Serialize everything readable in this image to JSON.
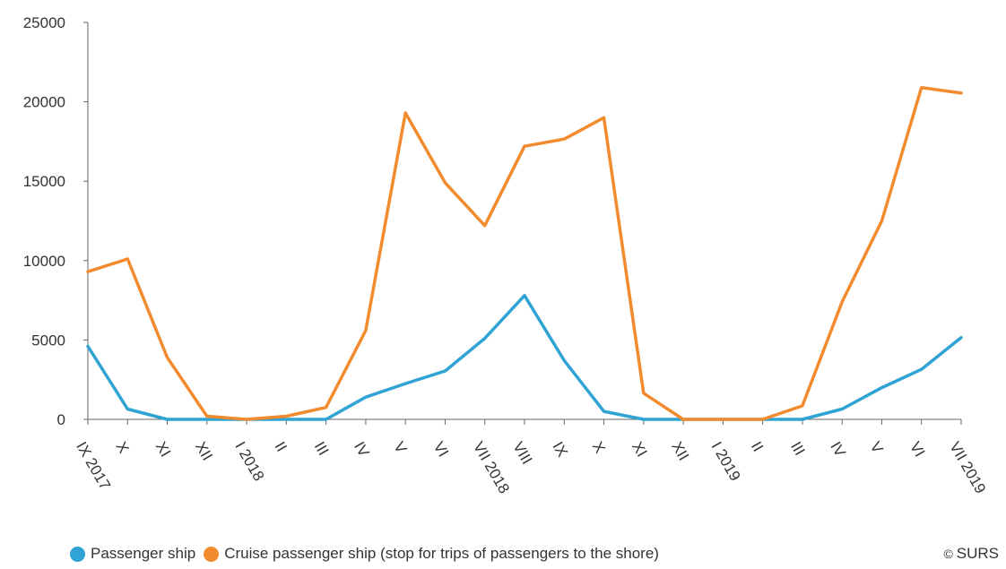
{
  "chart_data": {
    "type": "line",
    "categories": [
      "IX 2017",
      "X",
      "XI",
      "XII",
      "I 2018",
      "II",
      "III",
      "IV",
      "V",
      "VI",
      "VII 2018",
      "VIII",
      "IX",
      "X",
      "XI",
      "XII",
      "I 2019",
      "II",
      "III",
      "IV",
      "V",
      "VI",
      "VII 2019"
    ],
    "series": [
      {
        "name": "Passenger ship",
        "color": "#2ea3d4",
        "values": [
          4600,
          650,
          0,
          0,
          0,
          0,
          0,
          1400,
          2250,
          3050,
          5100,
          7800,
          3700,
          500,
          0,
          0,
          0,
          0,
          0,
          650,
          2000,
          3150,
          5150
        ]
      },
      {
        "name": "Cruise passenger ship (stop for trips of passengers to the shore)",
        "color": "#f28a2e",
        "values": [
          9300,
          10100,
          3900,
          200,
          0,
          200,
          750,
          5600,
          19300,
          14900,
          12200,
          17200,
          17650,
          19000,
          1650,
          0,
          0,
          0,
          850,
          7400,
          12500,
          20900,
          20550
        ]
      }
    ],
    "yticks": [
      "25000",
      "20000",
      "15000",
      "10000",
      "5000",
      "0"
    ],
    "ylim": [
      0,
      25000
    ],
    "xlabel": "",
    "ylabel": "",
    "grid": false,
    "legend": "bottom-left"
  },
  "credit": {
    "icon": "copyright-icon",
    "symbol": "©",
    "text": "SURS"
  }
}
